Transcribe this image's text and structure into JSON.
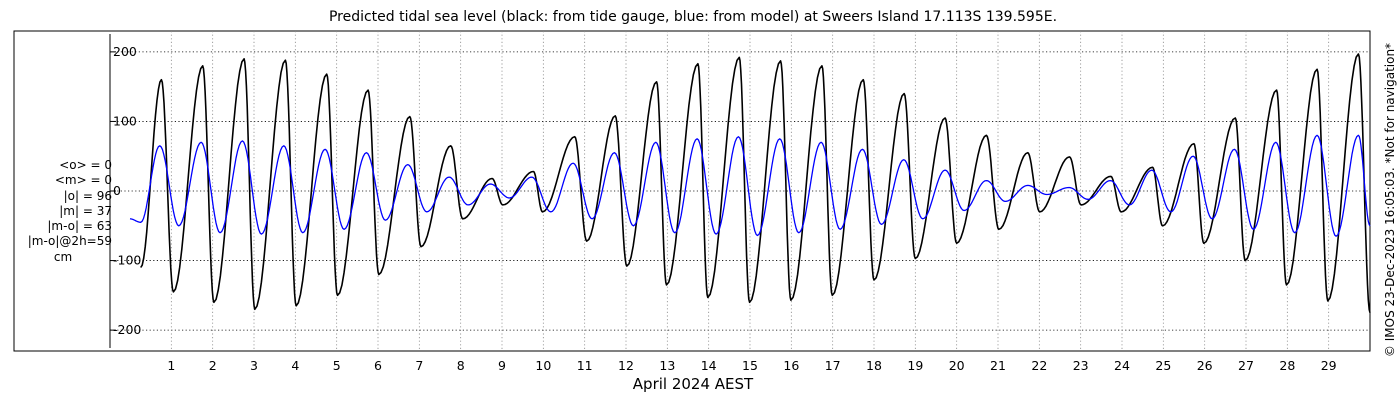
{
  "chart_data": {
    "type": "line",
    "title": "Predicted tidal sea level (black: from tide gauge, blue: from model) at Sweers Island 17.113S 139.595E.",
    "xlabel": "April 2024 AEST",
    "ylabel": "",
    "xlim": [
      0,
      30
    ],
    "ylim": [
      -230,
      230
    ],
    "yticks": [
      200,
      100,
      0,
      -100,
      -200
    ],
    "ytick_labels": [
      "200",
      "100",
      "0",
      "-100",
      "-200"
    ],
    "xticks": [
      1,
      2,
      3,
      4,
      5,
      6,
      7,
      8,
      9,
      10,
      11,
      12,
      13,
      14,
      15,
      16,
      17,
      18,
      19,
      20,
      21,
      22,
      23,
      24,
      25,
      26,
      27,
      28,
      29
    ],
    "xtick_labels": [
      "1",
      "2",
      "3",
      "4",
      "5",
      "6",
      "7",
      "8",
      "9",
      "10",
      "11",
      "12",
      "13",
      "14",
      "15",
      "16",
      "17",
      "18",
      "19",
      "20",
      "21",
      "22",
      "23",
      "24",
      "25",
      "26",
      "27",
      "28",
      "29"
    ],
    "grid": true,
    "series": [
      {
        "color": "#000000",
        "x": [
          0.26,
          0.76,
          1.05,
          1.76,
          2.03,
          2.76,
          3.02,
          3.76,
          4.02,
          4.76,
          5.02,
          5.76,
          6.02,
          6.77,
          7.04,
          7.76,
          8.05,
          8.76,
          9.02,
          9.76,
          9.98,
          10.76,
          11.05,
          11.74,
          12.02,
          12.74,
          12.98,
          13.74,
          13.98,
          14.74,
          14.99,
          15.74,
          15.99,
          16.74,
          16.99,
          17.74,
          18.0,
          18.73,
          19.0,
          19.72,
          20.0,
          20.72,
          21.02,
          21.72,
          22.01,
          22.73,
          23.01,
          23.73,
          23.98,
          24.74,
          24.98,
          25.74,
          25.98,
          26.74,
          26.98,
          27.74,
          27.98,
          28.72,
          28.98,
          29.72,
          30.0
        ],
        "y": [
          -110,
          160,
          -145,
          180,
          -160,
          190,
          -170,
          188,
          -165,
          168,
          -150,
          145,
          -120,
          107,
          -80,
          65,
          -40,
          18,
          -20,
          28,
          -30,
          78,
          -72,
          108,
          -108,
          157,
          -135,
          183,
          -153,
          192,
          -160,
          187,
          -157,
          180,
          -150,
          160,
          -128,
          140,
          -97,
          105,
          -75,
          80,
          -55,
          55,
          -30,
          49,
          -20,
          21,
          -30,
          34,
          -50,
          68,
          -75,
          105,
          -100,
          145,
          -135,
          175,
          -158,
          197,
          -175
        ]
      },
      {
        "color": "#0000ff",
        "x": [
          0.0,
          0.26,
          0.72,
          1.18,
          1.72,
          2.18,
          2.72,
          3.18,
          3.72,
          4.18,
          4.72,
          5.18,
          5.72,
          6.18,
          6.72,
          7.18,
          7.72,
          8.18,
          8.72,
          9.18,
          9.72,
          10.18,
          10.72,
          11.18,
          11.72,
          12.18,
          12.72,
          13.18,
          13.72,
          14.18,
          14.72,
          15.18,
          15.72,
          16.18,
          16.72,
          17.18,
          17.72,
          18.18,
          18.72,
          19.18,
          19.72,
          20.18,
          20.72,
          21.18,
          21.72,
          22.18,
          22.72,
          23.18,
          23.72,
          24.18,
          24.72,
          25.18,
          25.72,
          26.18,
          26.72,
          27.18,
          27.72,
          28.18,
          28.72,
          29.18,
          29.72,
          30.0
        ],
        "y": [
          -40,
          -45,
          65,
          -50,
          70,
          -60,
          72,
          -62,
          65,
          -60,
          60,
          -55,
          55,
          -42,
          38,
          -30,
          20,
          -20,
          10,
          -10,
          20,
          -30,
          40,
          -40,
          55,
          -50,
          70,
          -60,
          75,
          -62,
          78,
          -64,
          75,
          -60,
          70,
          -55,
          60,
          -48,
          45,
          -40,
          30,
          -28,
          15,
          -15,
          8,
          -5,
          5,
          -12,
          15,
          -20,
          30,
          -30,
          50,
          -40,
          60,
          -55,
          70,
          -60,
          80,
          -65,
          80,
          -50
        ]
      }
    ]
  },
  "stats": [
    "<o> = 0",
    "<m> = 0",
    "|o| = 96",
    "|m| = 37",
    "|m-o| = 63",
    "|m-o|@2h=59"
  ],
  "stats_unit": "cm",
  "side_note": "© IMOS 23-Dec-2023 16:05:03. *Not for navigation*"
}
